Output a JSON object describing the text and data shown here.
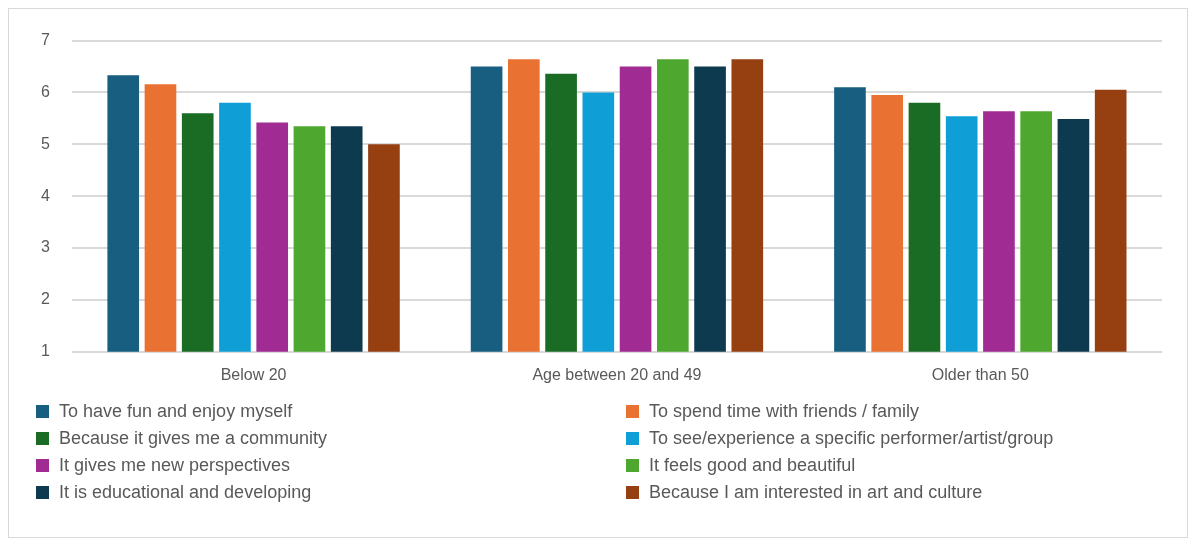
{
  "chart_data": {
    "type": "bar",
    "categories": [
      "Below 20",
      "Age between 20 and 49",
      "Older than 50"
    ],
    "series": [
      {
        "name": "To have fun and enjoy myself",
        "color": "#175e81",
        "values": [
          6.33,
          6.5,
          6.1
        ]
      },
      {
        "name": "To spend time with friends / family",
        "color": "#e97132",
        "values": [
          6.16,
          6.64,
          5.95
        ]
      },
      {
        "name": "Because it gives me a community",
        "color": "#1a6b24",
        "values": [
          5.6,
          6.36,
          5.8
        ]
      },
      {
        "name": "To see/experience a specific performer/artist/group",
        "color": "#0f9ed5",
        "values": [
          5.8,
          6.0,
          5.54
        ]
      },
      {
        "name": "It gives me new perspectives",
        "color": "#a02b93",
        "values": [
          5.42,
          6.5,
          5.64
        ]
      },
      {
        "name": "It feels good and beautiful",
        "color": "#4ea72e",
        "values": [
          5.35,
          6.64,
          5.64
        ]
      },
      {
        "name": "It is educational and developing",
        "color": "#0e3a50",
        "values": [
          5.35,
          6.5,
          5.49
        ]
      },
      {
        "name": "Because I am interested in art and culture",
        "color": "#963f11",
        "values": [
          5.0,
          6.64,
          6.05
        ]
      }
    ],
    "ylim": [
      1,
      7
    ],
    "yticks": [
      1,
      2,
      3,
      4,
      5,
      6,
      7
    ],
    "grid": "y",
    "legend": "bottom"
  }
}
